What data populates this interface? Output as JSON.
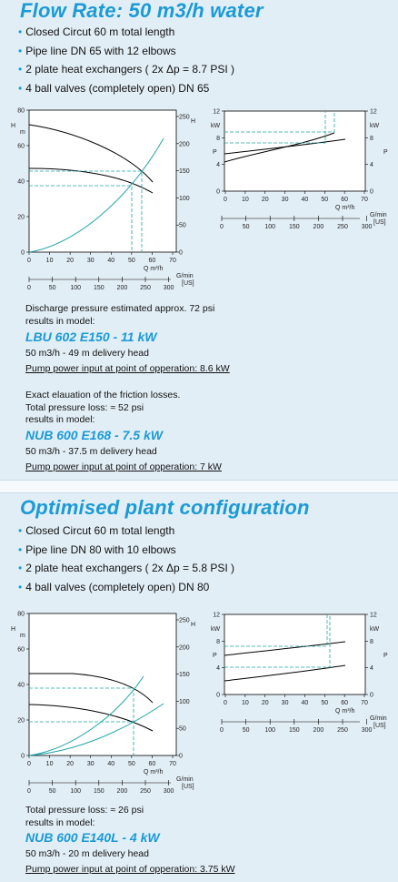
{
  "sec1": {
    "title": "Flow Rate: 50 m3/h water",
    "bullets": [
      "Closed Circut 60 m total length",
      "Pipe line DN 65 with 12 elbows",
      "2 plate heat exchangers ( 2x Δp = 8.7 PSI )",
      "4 ball valves (completely open) DN 65"
    ],
    "block1": {
      "line1": "Discharge pressure estimated approx. 72 psi",
      "line2": "results in model:",
      "model": "LBU 602 E150 - 11 kW",
      "detail": "50 m3/h - 49 m delivery head",
      "power": "Pump power input at point of opperation: 8.6 kW"
    },
    "block2": {
      "line1": "Exact elauation of the friction losses.",
      "line2": "Total pressure loss: ≈ 52 psi",
      "line3": "results in model:",
      "model": "NUB 600 E168 - 7.5 kW",
      "detail": "50 m3/h - 37.5 m delivery head",
      "power": "Pump power input at point of opperation: 7 kW"
    }
  },
  "sec2": {
    "title": "Optimised plant configuration",
    "bullets": [
      "Closed Circut 60 m total length",
      "Pipe line DN 80 with 10 elbows",
      "2 plate heat exchangers ( 2x Δp = 5.8 PSI )",
      "4 ball valves (completely open) DN 80"
    ],
    "block": {
      "line1": "Total pressure loss: ≈ 26 psi",
      "line2": "results in model:",
      "model": "NUB 600 E140L - 4 kW",
      "detail": "50 m3/h - 20 m delivery head",
      "power": "Pump power input at point of opperation: 3.75 kW"
    }
  },
  "charts": {
    "head": {
      "h_label": "H",
      "m_label": "m",
      "h_ticks": [
        "0",
        "20",
        "40",
        "60",
        "80"
      ],
      "psi_label": "H",
      "psi_ticks": [
        "0",
        "50",
        "100",
        "150",
        "200",
        "250"
      ],
      "x_ticks": [
        "0",
        "10",
        "20",
        "30",
        "40",
        "50",
        "60",
        "70"
      ],
      "x_unit": "Q m³/h",
      "g_ticks": [
        "0",
        "50",
        "100",
        "150",
        "200",
        "250",
        "300"
      ],
      "g_unit": "G/min",
      "g_unit2": "[US]"
    },
    "power": {
      "kw_label": "kW",
      "p_label": "P",
      "left_ticks": [
        "0",
        "4",
        "8",
        "12"
      ],
      "right_ticks": [
        "0",
        "4",
        "8",
        "12"
      ],
      "x_ticks": [
        "0",
        "10",
        "20",
        "30",
        "40",
        "50",
        "60",
        "70"
      ],
      "x_unit": "Q m³/h",
      "g_ticks": [
        "0",
        "50",
        "100",
        "150",
        "200",
        "250",
        "300"
      ],
      "g_unit": "G/min",
      "g_unit2": "[US]"
    }
  },
  "colors": {
    "title": "#1a9ad6",
    "curve_teal": "#1ea5a5",
    "dashed": "#1ea5a5",
    "background": "#e2eef6"
  }
}
